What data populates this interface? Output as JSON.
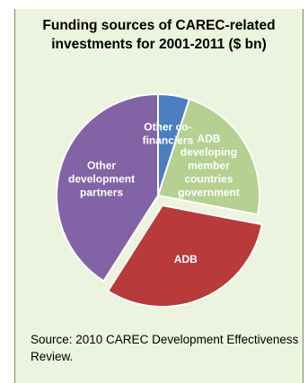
{
  "chart_data": {
    "type": "pie",
    "title": "Funding sources of CAREC-related investments for 2001-2011 ($ bn)",
    "slices": [
      {
        "label": "Other co-financiers",
        "lines": [
          "Other co-",
          "financiers"
        ],
        "share": 5,
        "color": "#4a7ebf",
        "exploded": false
      },
      {
        "label": "ADB developing member countries government",
        "lines": [
          "ADB",
          "developing",
          "member",
          "countries",
          "government"
        ],
        "share": 23,
        "color": "#b5d091",
        "exploded": false
      },
      {
        "label": "ADB",
        "lines": [
          "ADB"
        ],
        "share": 31,
        "color": "#b93a3a",
        "exploded": true
      },
      {
        "label": "Other development partners",
        "lines": [
          "Other",
          "development",
          "partners"
        ],
        "share": 41,
        "color": "#8264a6",
        "exploded": false
      }
    ]
  },
  "source_note": "Source: 2010 CAREC Development Effectiveness Review."
}
